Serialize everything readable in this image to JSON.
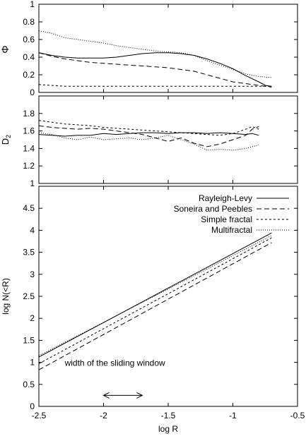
{
  "chart_data": [
    {
      "type": "line",
      "ylabel": "Φ",
      "xlim": [
        -2.5,
        -0.5
      ],
      "ylim": [
        0,
        1
      ],
      "yticks": [
        "0",
        "0.2",
        "0.4",
        "0.6",
        "0.8",
        "1"
      ],
      "grid": false,
      "series": [
        {
          "style": "solid",
          "x": [
            -2.5,
            -2.4,
            -2.3,
            -2.2,
            -2.1,
            -2.0,
            -1.9,
            -1.8,
            -1.7,
            -1.6,
            -1.5,
            -1.4,
            -1.3,
            -1.2,
            -1.1,
            -1.0,
            -0.9,
            -0.8,
            -0.75,
            -0.7
          ],
          "y": [
            0.45,
            0.42,
            0.4,
            0.39,
            0.39,
            0.39,
            0.4,
            0.42,
            0.44,
            0.45,
            0.45,
            0.44,
            0.42,
            0.38,
            0.33,
            0.27,
            0.19,
            0.12,
            0.08,
            0.07
          ]
        },
        {
          "style": "dashed",
          "x": [
            -2.5,
            -2.4,
            -2.3,
            -2.2,
            -2.1,
            -2.0,
            -1.9,
            -1.8,
            -1.7,
            -1.6,
            -1.5,
            -1.4,
            -1.3,
            -1.2,
            -1.1,
            -1.0,
            -0.9,
            -0.8,
            -0.7
          ],
          "y": [
            0.45,
            0.41,
            0.38,
            0.36,
            0.34,
            0.33,
            0.32,
            0.31,
            0.3,
            0.29,
            0.28,
            0.26,
            0.24,
            0.2,
            0.16,
            0.12,
            0.1,
            0.08,
            0.06
          ]
        },
        {
          "style": "short-dashed",
          "x": [
            -2.5,
            -2.4,
            -2.3,
            -2.2,
            -2.1,
            -2.0,
            -1.8,
            -1.6,
            -1.4,
            -1.2,
            -1.0,
            -0.9,
            -0.8,
            -0.7
          ],
          "y": [
            0.09,
            0.08,
            0.07,
            0.07,
            0.07,
            0.07,
            0.07,
            0.07,
            0.07,
            0.07,
            0.07,
            0.07,
            0.07,
            0.07
          ]
        },
        {
          "style": "dotted",
          "x": [
            -2.5,
            -2.4,
            -2.3,
            -2.2,
            -2.1,
            -2.0,
            -1.9,
            -1.8,
            -1.7,
            -1.6,
            -1.5,
            -1.4,
            -1.3,
            -1.2,
            -1.1,
            -1.0,
            -0.9,
            -0.8,
            -0.7
          ],
          "y": [
            0.7,
            0.67,
            0.62,
            0.6,
            0.58,
            0.56,
            0.53,
            0.51,
            0.49,
            0.47,
            0.46,
            0.45,
            0.42,
            0.36,
            0.31,
            0.26,
            0.21,
            0.18,
            0.17
          ]
        }
      ]
    },
    {
      "type": "line",
      "ylabel": "D",
      "ylabel_sub": "2",
      "xlim": [
        -2.5,
        -0.5
      ],
      "ylim": [
        1,
        2
      ],
      "yticks": [
        "1",
        "1.2",
        "1.4",
        "1.6",
        "1.8"
      ],
      "grid": false,
      "series": [
        {
          "style": "solid",
          "x": [
            -2.5,
            -2.4,
            -2.3,
            -2.2,
            -2.1,
            -2.0,
            -1.9,
            -1.8,
            -1.7,
            -1.6,
            -1.5,
            -1.4,
            -1.3,
            -1.2,
            -1.1,
            -1.0,
            -0.9,
            -0.85,
            -0.8
          ],
          "y": [
            1.56,
            1.55,
            1.54,
            1.55,
            1.55,
            1.57,
            1.56,
            1.57,
            1.58,
            1.58,
            1.57,
            1.58,
            1.58,
            1.57,
            1.58,
            1.57,
            1.56,
            1.57,
            1.55
          ]
        },
        {
          "style": "dashed",
          "x": [
            -2.5,
            -2.4,
            -2.3,
            -2.2,
            -2.1,
            -2.0,
            -1.9,
            -1.8,
            -1.7,
            -1.6,
            -1.5,
            -1.4,
            -1.3,
            -1.2,
            -1.1,
            -1.0,
            -0.9,
            -0.85,
            -0.8
          ],
          "y": [
            1.66,
            1.64,
            1.63,
            1.62,
            1.63,
            1.62,
            1.6,
            1.58,
            1.56,
            1.52,
            1.48,
            1.52,
            1.46,
            1.42,
            1.45,
            1.5,
            1.55,
            1.62,
            1.65
          ]
        },
        {
          "style": "short-dashed",
          "x": [
            -2.5,
            -2.4,
            -2.3,
            -2.2,
            -2.1,
            -2.0,
            -1.9,
            -1.8,
            -1.7,
            -1.6,
            -1.5,
            -1.4,
            -1.3,
            -1.2,
            -1.1,
            -1.0,
            -0.9,
            -0.85,
            -0.8
          ],
          "y": [
            1.72,
            1.7,
            1.68,
            1.67,
            1.66,
            1.64,
            1.63,
            1.62,
            1.61,
            1.6,
            1.59,
            1.58,
            1.57,
            1.56,
            1.55,
            1.57,
            1.62,
            1.65,
            1.62
          ]
        },
        {
          "style": "dotted",
          "x": [
            -2.5,
            -2.4,
            -2.3,
            -2.2,
            -2.1,
            -2.0,
            -1.9,
            -1.8,
            -1.7,
            -1.6,
            -1.5,
            -1.4,
            -1.3,
            -1.2,
            -1.1,
            -1.0,
            -0.9,
            -0.85,
            -0.8
          ],
          "y": [
            1.58,
            1.56,
            1.52,
            1.5,
            1.53,
            1.5,
            1.51,
            1.52,
            1.5,
            1.52,
            1.55,
            1.5,
            1.45,
            1.38,
            1.39,
            1.38,
            1.4,
            1.42,
            1.44
          ]
        }
      ]
    },
    {
      "type": "line",
      "xlabel": "log R",
      "ylabel": "log N(<R)",
      "xlim": [
        -2.5,
        -0.5
      ],
      "ylim": [
        0,
        5
      ],
      "xticks": [
        "-2.5",
        "-2",
        "-1.5",
        "-1",
        "-0.5"
      ],
      "yticks": [
        "0",
        "0.5",
        "1",
        "1.5",
        "2",
        "2.5",
        "3",
        "3.5",
        "4",
        "4.5"
      ],
      "grid": false,
      "legend_position": "top-right",
      "series": [
        {
          "name": "Rayleigh-Levy",
          "style": "solid",
          "x": [
            -2.5,
            -0.7
          ],
          "y": [
            1.12,
            3.94
          ]
        },
        {
          "name": "Soneira and Peebles",
          "style": "dashed",
          "x": [
            -2.5,
            -0.7
          ],
          "y": [
            0.83,
            3.72
          ]
        },
        {
          "name": "Simple fractal",
          "style": "short-dashed",
          "x": [
            -2.5,
            -0.7
          ],
          "y": [
            0.97,
            3.83
          ]
        },
        {
          "name": "Multifractal",
          "style": "dotted",
          "x": [
            -2.5,
            -0.7
          ],
          "y": [
            1.15,
            3.88
          ]
        }
      ],
      "annotation": {
        "text": "width of the sliding window",
        "arrow_x": [
          -2.0,
          -1.7
        ],
        "arrow_y": 0.25
      }
    }
  ]
}
